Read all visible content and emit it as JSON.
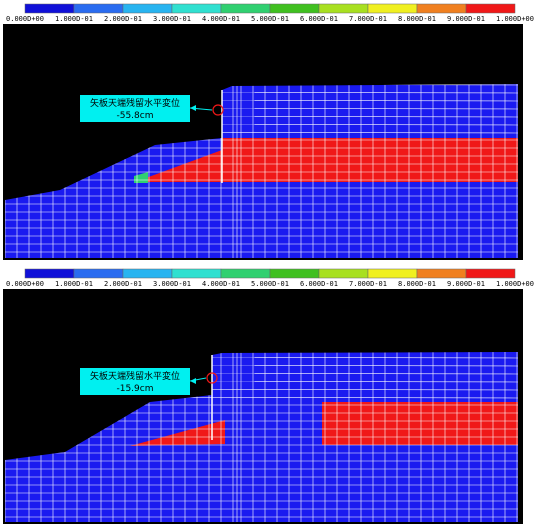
{
  "panels": [
    {
      "legend": {
        "labels": [
          "0.000D+00",
          "1.000D-01",
          "2.000D-01",
          "3.000D-01",
          "4.000D-01",
          "5.000D-01",
          "6.000D-01",
          "7.000D-01",
          "8.000D-01",
          "9.000D-01",
          "1.000D+00"
        ],
        "colors": [
          "#1010d8",
          "#2a6cf0",
          "#28b4f0",
          "#30e0d0",
          "#30d070",
          "#40c020",
          "#a8e020",
          "#f0f020",
          "#f08020",
          "#f01818"
        ]
      },
      "annotation": {
        "label": "矢板天端残留水平変位",
        "value": "-55.8cm"
      }
    },
    {
      "legend": {
        "labels": [
          "0.000D+00",
          "1.000D-01",
          "2.000D-01",
          "3.000D-01",
          "4.000D-01",
          "5.000D-01",
          "6.000D-01",
          "7.000D-01",
          "8.000D-01",
          "9.000D-01",
          "1.000D+00"
        ],
        "colors": [
          "#1010d8",
          "#2a6cf0",
          "#28b4f0",
          "#30e0d0",
          "#30d070",
          "#40c020",
          "#a8e020",
          "#f0f020",
          "#f08020",
          "#f01818"
        ]
      },
      "annotation": {
        "label": "矢板天端残留水平変位",
        "value": "-15.9cm"
      }
    }
  ]
}
